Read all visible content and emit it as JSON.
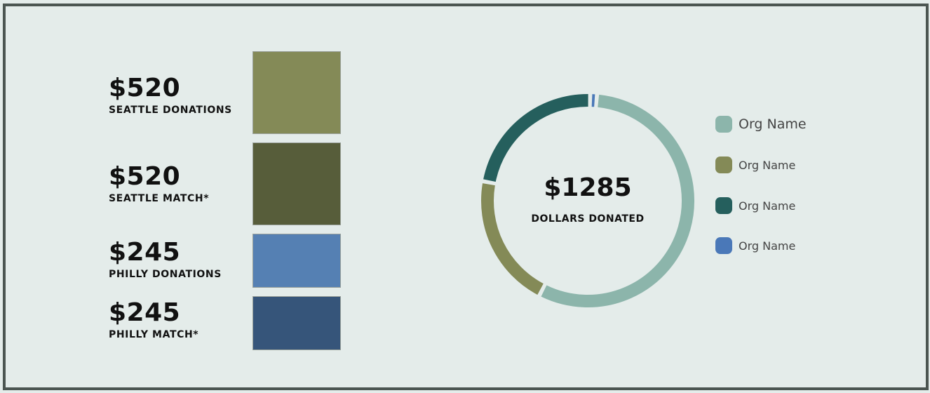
{
  "chart_data": [
    {
      "type": "bar",
      "series": [
        {
          "label": "SEATTLE DONATIONS",
          "display": "$520",
          "value": 520,
          "color": "#848a57"
        },
        {
          "label": "SEATTLE MATCH*",
          "display": "$520",
          "value": 520,
          "color": "#575d3a"
        },
        {
          "label": "PHILLY DONATIONS",
          "display": "$245",
          "value": 245,
          "color": "#5580b3"
        },
        {
          "label": "PHILLY MATCH*",
          "display": "$245",
          "value": 245,
          "color": "#36557a"
        }
      ]
    },
    {
      "type": "pie",
      "center_value": "$1285",
      "center_label": "DOLLARS DONATED",
      "slices": [
        {
          "name": "Org Name",
          "value": 0.55,
          "color": "#8cb5ab"
        },
        {
          "name": "Org Name",
          "value": 0.2,
          "color": "#848a57"
        },
        {
          "name": "Org Name",
          "value": 0.22,
          "color": "#255f5d"
        },
        {
          "name": "Org Name",
          "value": 0.01,
          "color": "#4a78b8"
        }
      ]
    }
  ]
}
